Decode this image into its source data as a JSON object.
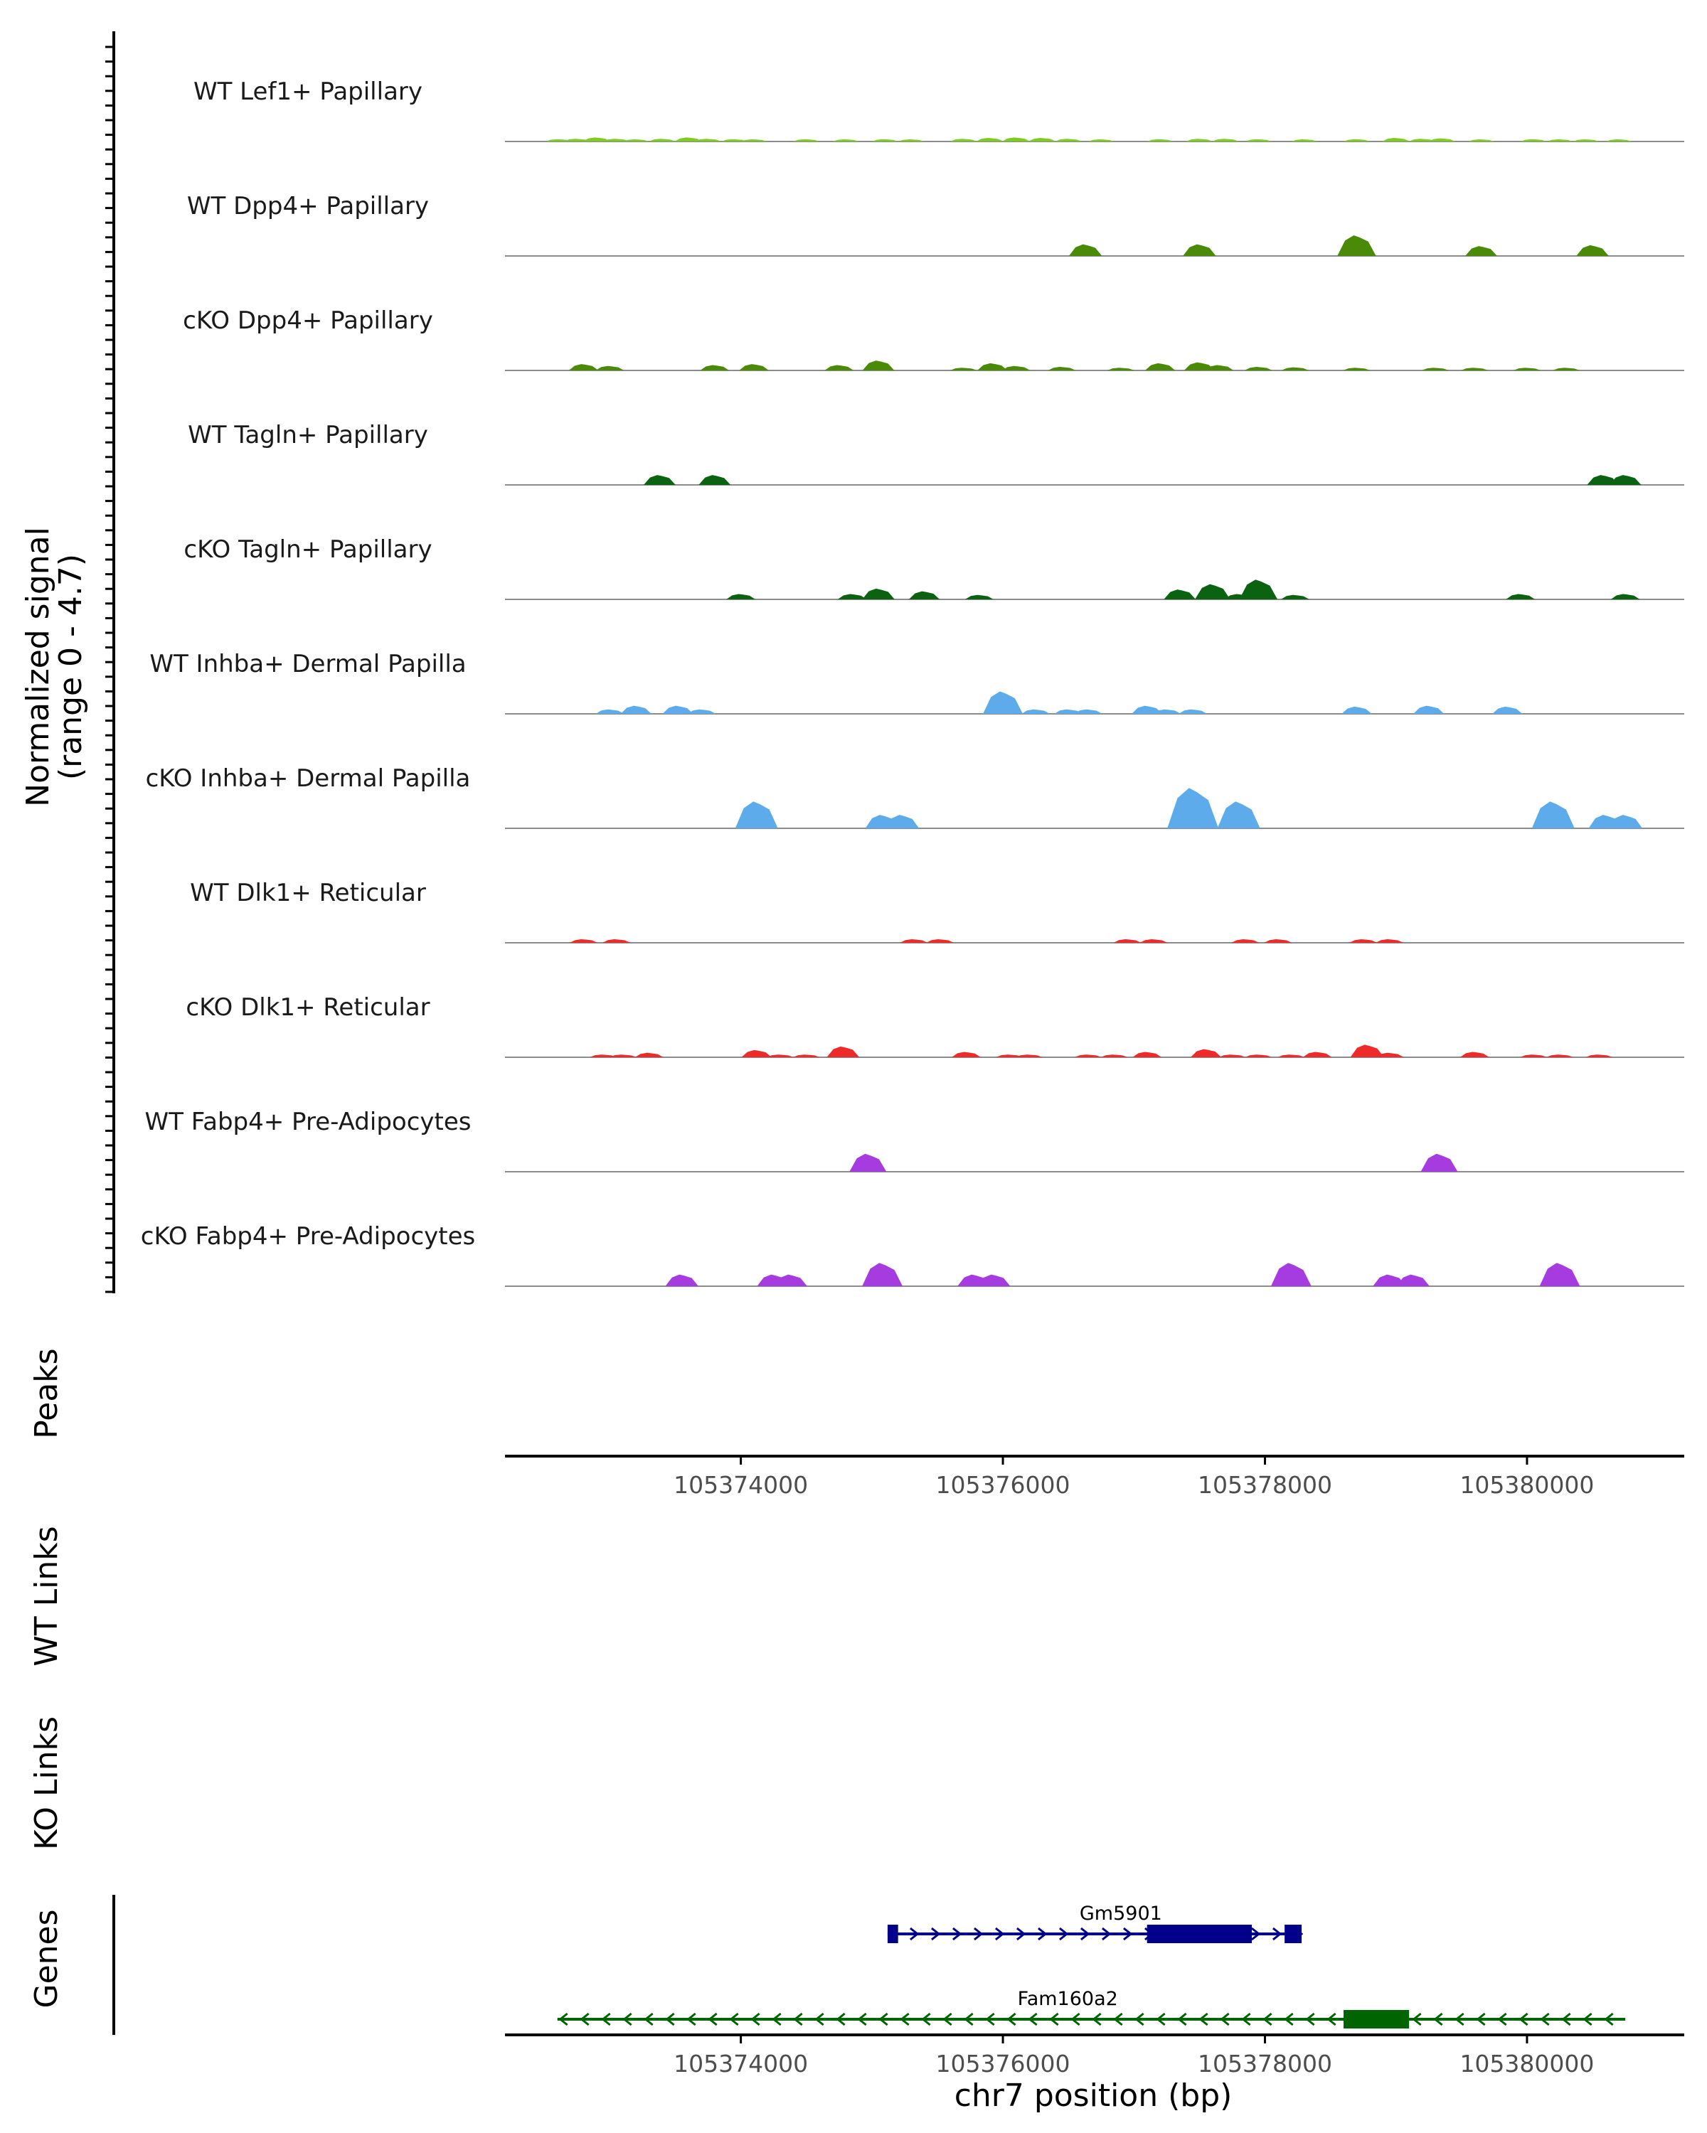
{
  "chart_data": {
    "type": "area",
    "title": "",
    "region": "chr7",
    "xlabel": "chr7 position (bp)",
    "xlim": [
      105372200,
      105381200
    ],
    "xticks": [
      "105374000",
      "105376000",
      "105378000",
      "105380000"
    ],
    "xtick_values": [
      105374000,
      105376000,
      105378000,
      105380000
    ],
    "ylabel": "Normalized signal",
    "ylabel_range": "(range 0 - 4.7)",
    "ylim": [
      0,
      4.7
    ],
    "track_labels": {
      "peaks": "Peaks",
      "wt_links": "WT Links",
      "ko_links": "KO Links",
      "genes": "Genes"
    },
    "series": [
      {
        "name": "WT Lef1+ Papillary",
        "color": "#7CCD1E",
        "points": [
          [
            105372610,
            0.25
          ],
          [
            105372750,
            0.3
          ],
          [
            105372900,
            0.45
          ],
          [
            105373050,
            0.3
          ],
          [
            105373200,
            0.2
          ],
          [
            105373400,
            0.3
          ],
          [
            105373600,
            0.45
          ],
          [
            105373750,
            0.3
          ],
          [
            105373950,
            0.25
          ],
          [
            105374100,
            0.2
          ],
          [
            105374500,
            0.25
          ],
          [
            105374800,
            0.2
          ],
          [
            105375100,
            0.25
          ],
          [
            105375300,
            0.2
          ],
          [
            105375700,
            0.3
          ],
          [
            105375900,
            0.4
          ],
          [
            105376100,
            0.45
          ],
          [
            105376300,
            0.4
          ],
          [
            105376500,
            0.3
          ],
          [
            105376750,
            0.2
          ],
          [
            105377200,
            0.25
          ],
          [
            105377500,
            0.3
          ],
          [
            105377700,
            0.3
          ],
          [
            105377950,
            0.25
          ],
          [
            105378300,
            0.2
          ],
          [
            105378700,
            0.25
          ],
          [
            105379000,
            0.4
          ],
          [
            105379200,
            0.3
          ],
          [
            105379350,
            0.35
          ],
          [
            105379650,
            0.2
          ],
          [
            105380050,
            0.25
          ],
          [
            105380250,
            0.2
          ],
          [
            105380450,
            0.2
          ],
          [
            105380700,
            0.15
          ]
        ]
      },
      {
        "name": "WT Dpp4+ Papillary",
        "color": "#4A8A07",
        "points": [
          [
            105376630,
            1.3
          ],
          [
            105377500,
            1.3
          ],
          [
            105378700,
            2.3
          ],
          [
            105379650,
            1.1
          ],
          [
            105380500,
            1.2
          ]
        ]
      },
      {
        "name": "cKO Dpp4+ Papillary",
        "color": "#4A8A07",
        "points": [
          [
            105372800,
            0.7
          ],
          [
            105373000,
            0.5
          ],
          [
            105373800,
            0.6
          ],
          [
            105374100,
            0.7
          ],
          [
            105374750,
            0.6
          ],
          [
            105375050,
            1.1
          ],
          [
            105375700,
            0.3
          ],
          [
            105375920,
            0.8
          ],
          [
            105376100,
            0.5
          ],
          [
            105376450,
            0.4
          ],
          [
            105376900,
            0.3
          ],
          [
            105377200,
            0.8
          ],
          [
            105377500,
            0.9
          ],
          [
            105377650,
            0.6
          ],
          [
            105377950,
            0.4
          ],
          [
            105378230,
            0.35
          ],
          [
            105378700,
            0.3
          ],
          [
            105379300,
            0.3
          ],
          [
            105379600,
            0.3
          ],
          [
            105380000,
            0.3
          ],
          [
            105380300,
            0.3
          ]
        ]
      },
      {
        "name": "WT Tagln+ Papillary",
        "color": "#0B6210",
        "points": [
          [
            105373380,
            1.1
          ],
          [
            105373800,
            1.1
          ],
          [
            105380580,
            1.1
          ],
          [
            105380750,
            1.1
          ]
        ]
      },
      {
        "name": "cKO Tagln+ Papillary",
        "color": "#0B6210",
        "points": [
          [
            105374000,
            0.6
          ],
          [
            105374850,
            0.6
          ],
          [
            105375050,
            1.2
          ],
          [
            105375400,
            0.9
          ],
          [
            105375820,
            0.5
          ],
          [
            105377350,
            1.1
          ],
          [
            105377600,
            1.7
          ],
          [
            105377800,
            0.6
          ],
          [
            105377950,
            2.2
          ],
          [
            105378230,
            0.5
          ],
          [
            105379950,
            0.6
          ],
          [
            105380750,
            0.6
          ]
        ]
      },
      {
        "name": "WT Inhba+ Dermal Papilla",
        "color": "#5DABEB",
        "points": [
          [
            105373000,
            0.5
          ],
          [
            105373200,
            0.9
          ],
          [
            105373520,
            0.9
          ],
          [
            105373700,
            0.5
          ],
          [
            105376000,
            2.5
          ],
          [
            105376250,
            0.5
          ],
          [
            105376500,
            0.5
          ],
          [
            105376650,
            0.5
          ],
          [
            105377100,
            0.9
          ],
          [
            105377250,
            0.5
          ],
          [
            105377450,
            0.5
          ],
          [
            105378700,
            0.8
          ],
          [
            105379250,
            0.9
          ],
          [
            105379850,
            0.8
          ]
        ]
      },
      {
        "name": "cKO Inhba+ Dermal Papilla",
        "color": "#5DABEB",
        "points": [
          [
            105374120,
            3.0
          ],
          [
            105375080,
            1.5
          ],
          [
            105375230,
            1.5
          ],
          [
            105377450,
            4.5
          ],
          [
            105377800,
            3.0
          ],
          [
            105380200,
            3.0
          ],
          [
            105380600,
            1.5
          ],
          [
            105380750,
            1.5
          ]
        ]
      },
      {
        "name": "WT Dlk1+ Reticular",
        "color": "#EE2A2A",
        "points": [
          [
            105372800,
            0.4
          ],
          [
            105373050,
            0.4
          ],
          [
            105375320,
            0.4
          ],
          [
            105375520,
            0.4
          ],
          [
            105376950,
            0.4
          ],
          [
            105377150,
            0.4
          ],
          [
            105377850,
            0.4
          ],
          [
            105378100,
            0.4
          ],
          [
            105378750,
            0.4
          ],
          [
            105378950,
            0.4
          ]
        ]
      },
      {
        "name": "cKO Dlk1+ Reticular",
        "color": "#EE2A2A",
        "points": [
          [
            105372950,
            0.3
          ],
          [
            105373100,
            0.3
          ],
          [
            105373300,
            0.5
          ],
          [
            105374120,
            0.8
          ],
          [
            105374300,
            0.3
          ],
          [
            105374500,
            0.3
          ],
          [
            105374780,
            1.2
          ],
          [
            105375720,
            0.6
          ],
          [
            105376050,
            0.3
          ],
          [
            105376200,
            0.3
          ],
          [
            105376650,
            0.3
          ],
          [
            105376850,
            0.3
          ],
          [
            105377100,
            0.6
          ],
          [
            105377550,
            0.9
          ],
          [
            105377750,
            0.3
          ],
          [
            105377950,
            0.3
          ],
          [
            105378200,
            0.3
          ],
          [
            105378400,
            0.6
          ],
          [
            105378780,
            1.4
          ],
          [
            105378950,
            0.5
          ],
          [
            105379600,
            0.6
          ],
          [
            105380050,
            0.3
          ],
          [
            105380250,
            0.3
          ],
          [
            105380550,
            0.3
          ]
        ]
      },
      {
        "name": "WT Fabp4+ Pre-Adipocytes",
        "color": "#A63BE0",
        "points": [
          [
            105374970,
            2.0
          ],
          [
            105379330,
            2.0
          ]
        ]
      },
      {
        "name": "cKO Fabp4+ Pre-Adipocytes",
        "color": "#A63BE0",
        "points": [
          [
            105373550,
            1.3
          ],
          [
            105374250,
            1.3
          ],
          [
            105374380,
            1.3
          ],
          [
            105375080,
            2.6
          ],
          [
            105375780,
            1.3
          ],
          [
            105375930,
            1.3
          ],
          [
            105378200,
            2.6
          ],
          [
            105378950,
            1.3
          ],
          [
            105379130,
            1.3
          ],
          [
            105380250,
            2.6
          ]
        ]
      }
    ],
    "genes": [
      {
        "name": "Gm5901",
        "color": "#00008B",
        "strand": "+",
        "start": 105375120,
        "end": 105378280,
        "exons": [
          [
            105375120,
            105375200
          ],
          [
            105377100,
            105377900
          ],
          [
            105378150,
            105378280
          ]
        ]
      },
      {
        "name": "Fam160a2",
        "color": "#006400",
        "strand": "-",
        "start": 105372600,
        "end": 105380750,
        "exons": [
          [
            105378600,
            105379100
          ]
        ]
      }
    ]
  }
}
